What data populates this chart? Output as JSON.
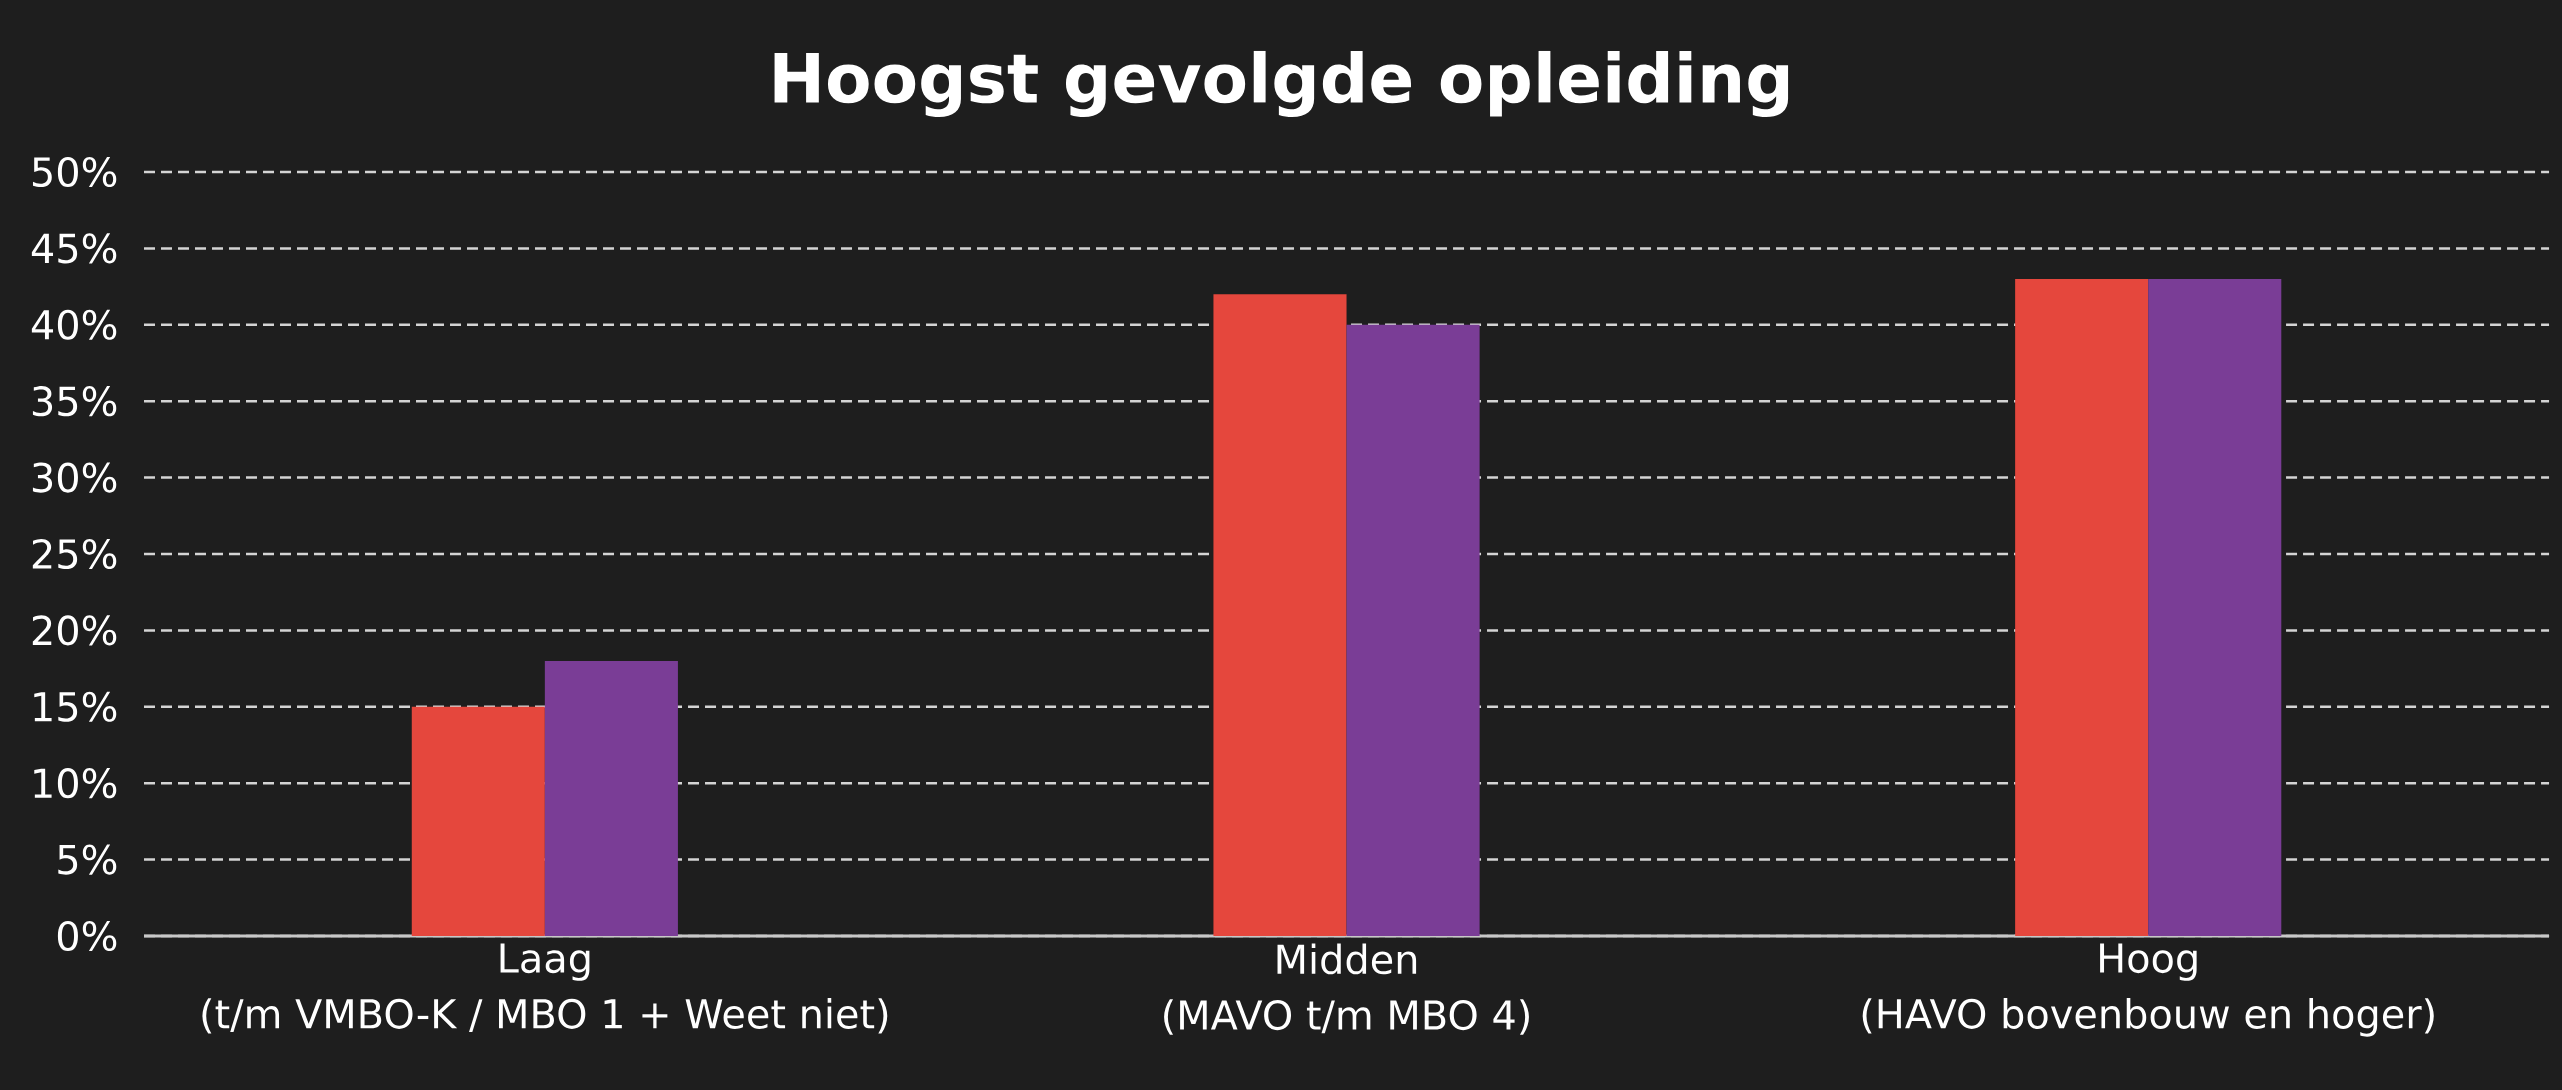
{
  "chart_data": {
    "type": "bar",
    "title": "Hoogst gevolgde opleiding",
    "categories": [
      "Laag\n(t/m VMBO-K / MBO 1 + Weet niet)",
      "Midden\n(MAVO t/m MBO 4)",
      "Hoog\n(HAVO bovenbouw en hoger)"
    ],
    "series": [
      {
        "color": "#e5473d",
        "values": [
          15,
          42,
          43
        ]
      },
      {
        "color": "#7a3d96",
        "values": [
          18,
          40,
          43
        ]
      }
    ],
    "ylim": [
      0,
      50
    ],
    "yticks": [
      {
        "value": 0,
        "label": "0%"
      },
      {
        "value": 5,
        "label": "5%"
      },
      {
        "value": 10,
        "label": "10%"
      },
      {
        "value": 15,
        "label": "15%"
      },
      {
        "value": 20,
        "label": "20%"
      },
      {
        "value": 25,
        "label": "25%"
      },
      {
        "value": 30,
        "label": "30%"
      },
      {
        "value": 35,
        "label": "35%"
      },
      {
        "value": 40,
        "label": "40%"
      },
      {
        "value": 45,
        "label": "45%"
      },
      {
        "value": 50,
        "label": "50%"
      }
    ],
    "grid": "y"
  }
}
